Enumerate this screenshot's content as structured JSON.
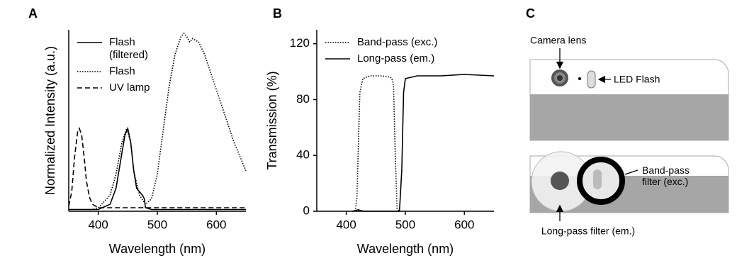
{
  "chart_data": [
    {
      "type": "line",
      "panel": "A",
      "xlabel": "Wavelength (nm)",
      "ylabel": "Normalized Intensity (a.u.)",
      "xlim": [
        350,
        650
      ],
      "xticks": [
        400,
        500,
        600
      ],
      "ylim": [
        -0.01,
        1.02
      ],
      "legend": "upper left",
      "legend_wrap": true,
      "series": [
        {
          "name": "Flash (filtered)",
          "color": "#000000",
          "style": "solid",
          "x": [
            350,
            400,
            420,
            430,
            440,
            445,
            450,
            455,
            460,
            465,
            470,
            475,
            478,
            480,
            490,
            650
          ],
          "values": [
            0,
            0,
            0.03,
            0.12,
            0.32,
            0.42,
            0.46,
            0.38,
            0.22,
            0.12,
            0.1,
            0.08,
            0.06,
            0.01,
            0,
            0
          ]
        },
        {
          "name": "Flash",
          "color": "#000000",
          "style": "dotted",
          "x": [
            350,
            390,
            400,
            420,
            430,
            440,
            448,
            455,
            460,
            470,
            480,
            490,
            500,
            510,
            520,
            530,
            540,
            545,
            550,
            555,
            560,
            570,
            580,
            590,
            600,
            610,
            620,
            630,
            640,
            650
          ],
          "values": [
            0,
            0,
            0.01,
            0.08,
            0.2,
            0.38,
            0.46,
            0.38,
            0.22,
            0.08,
            0.03,
            0.06,
            0.2,
            0.45,
            0.7,
            0.88,
            0.98,
            1.0,
            0.98,
            0.95,
            0.97,
            0.95,
            0.88,
            0.78,
            0.68,
            0.58,
            0.48,
            0.38,
            0.3,
            0.22
          ]
        },
        {
          "name": "UV lamp",
          "color": "#000000",
          "style": "dashed",
          "x": [
            350,
            355,
            360,
            365,
            368,
            372,
            376,
            380,
            385,
            390,
            400,
            450,
            650
          ],
          "values": [
            0.02,
            0.1,
            0.3,
            0.44,
            0.46,
            0.42,
            0.3,
            0.16,
            0.07,
            0.03,
            0.01,
            0.01,
            0.01
          ]
        }
      ]
    },
    {
      "type": "line",
      "panel": "B",
      "xlabel": "Wavelength (nm)",
      "ylabel": "Transmission (%)",
      "xlim": [
        350,
        650
      ],
      "xticks": [
        400,
        500,
        600
      ],
      "ylim": [
        0,
        130
      ],
      "yticks": [
        0,
        40,
        80,
        120
      ],
      "legend": "upper left",
      "legend_wrap": false,
      "series": [
        {
          "name": "Band-pass (exc.)",
          "color": "#000000",
          "style": "dotted",
          "x": [
            415,
            418,
            420,
            423,
            428,
            440,
            460,
            475,
            478,
            480,
            483,
            486,
            490
          ],
          "values": [
            0,
            10,
            40,
            85,
            95,
            97,
            97,
            96,
            94,
            90,
            40,
            2,
            0
          ]
        },
        {
          "name": "Long-pass (em.)",
          "color": "#000000",
          "style": "solid",
          "x": [
            410,
            420,
            430,
            480,
            490,
            494,
            497,
            500,
            520,
            560,
            600,
            650
          ],
          "values": [
            0,
            1,
            0,
            0,
            0,
            30,
            85,
            95,
            97,
            97,
            98,
            97
          ]
        }
      ]
    }
  ],
  "diagram": {
    "panel": "C",
    "camera_lens": "Camera lens",
    "led_flash": "LED Flash",
    "band_pass_filter": "Band-pass filter (exc.)",
    "long_pass_filter": "Long-pass filter (em.)"
  }
}
